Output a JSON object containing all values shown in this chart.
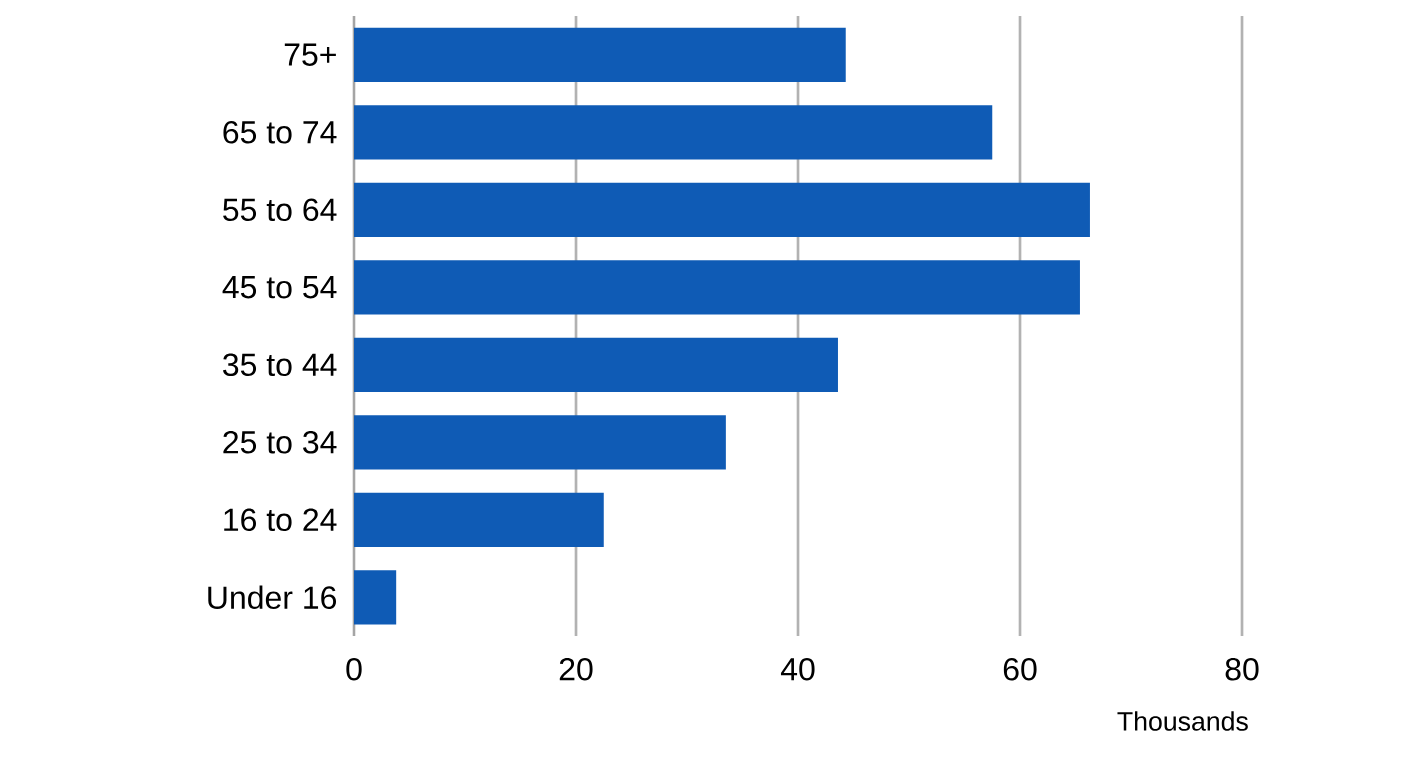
{
  "chart_data": {
    "type": "bar",
    "orientation": "horizontal",
    "categories": [
      "75+",
      "65 to 74",
      "55 to 64",
      "45 to 54",
      "35 to 44",
      "25 to 34",
      "16 to 24",
      "Under 16"
    ],
    "values": [
      44.3,
      57.5,
      66.3,
      65.4,
      43.6,
      33.5,
      22.5,
      3.8
    ],
    "color": "#0f5bb5",
    "xlim": [
      0,
      80
    ],
    "xticks": [
      0,
      20,
      40,
      60,
      80
    ],
    "xlabel": "Thousands",
    "grid": "x"
  }
}
